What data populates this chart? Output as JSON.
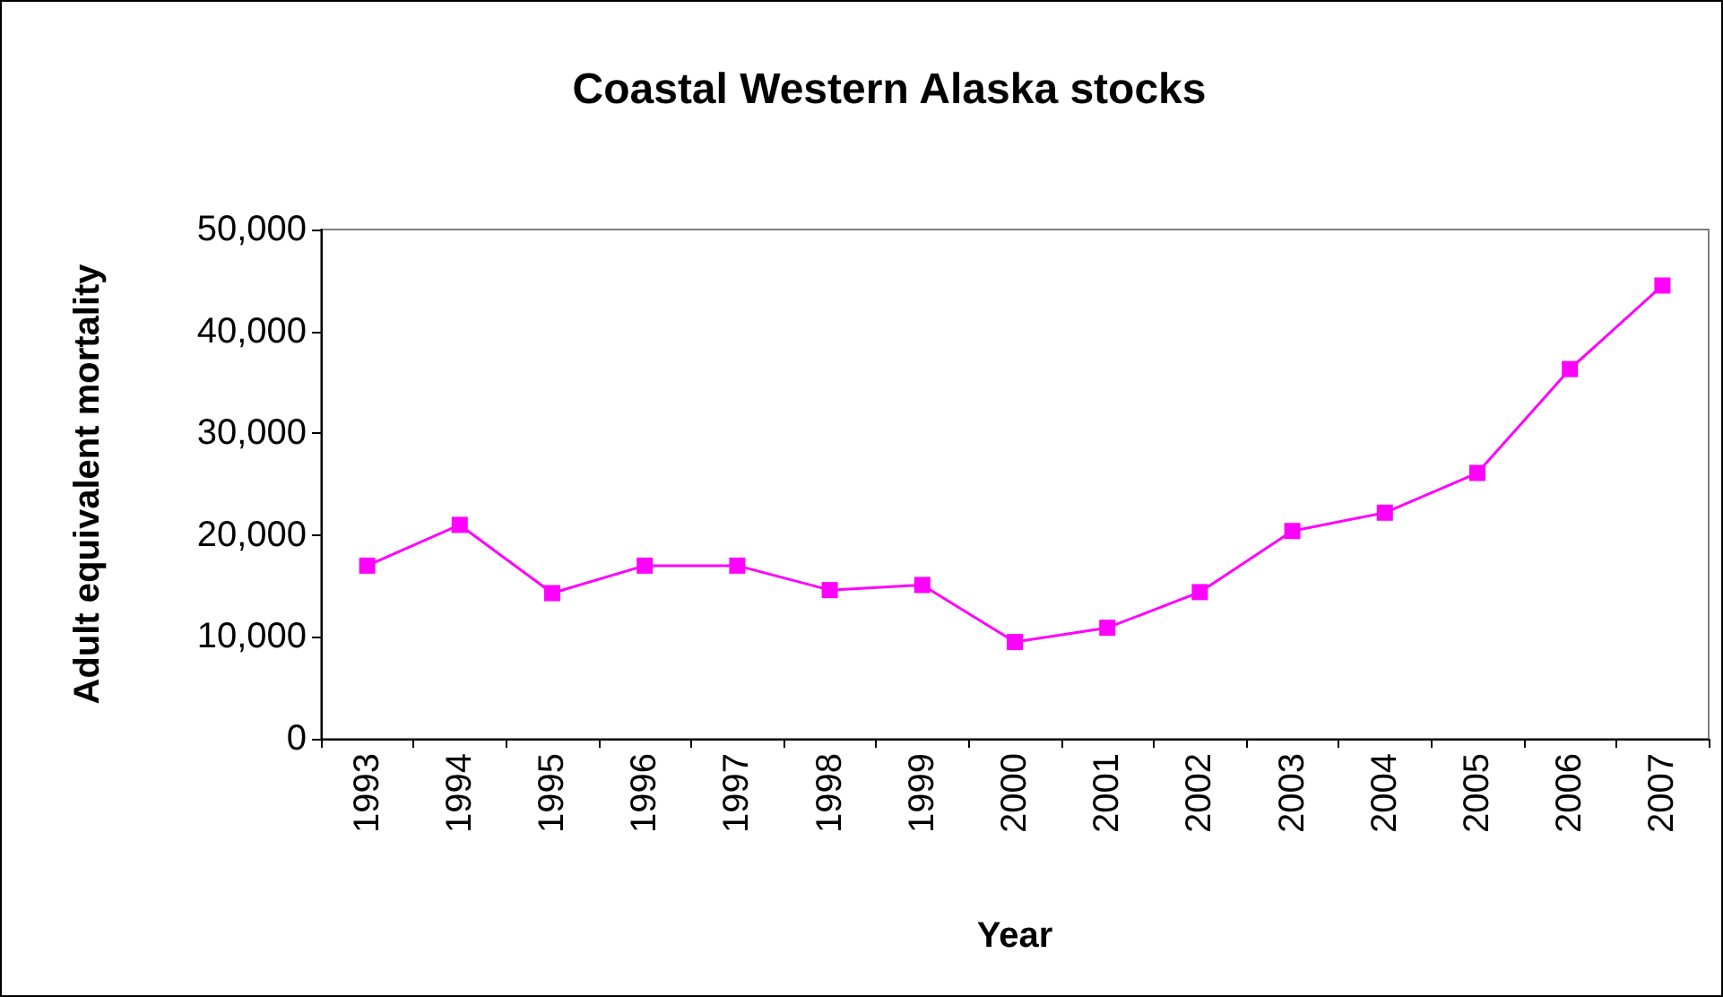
{
  "chart_data": {
    "type": "line",
    "title": "Coastal Western Alaska stocks",
    "xlabel": "Year",
    "ylabel": "Adult equivalent mortality",
    "categories": [
      "1993",
      "1994",
      "1995",
      "1996",
      "1997",
      "1998",
      "1999",
      "2000",
      "2001",
      "2002",
      "2003",
      "2004",
      "2005",
      "2006",
      "2007"
    ],
    "series": [
      {
        "color": "#ff00ff",
        "values": [
          17000,
          21000,
          14300,
          17000,
          17000,
          14600,
          15100,
          9500,
          10900,
          14400,
          20400,
          22200,
          26100,
          36300,
          44500
        ]
      }
    ],
    "ylim": [
      0,
      50000
    ],
    "yticks": [
      0,
      {
        "value": 10000,
        "label": "10,000"
      },
      {
        "value": 20000,
        "label": "20,000"
      },
      {
        "value": 30000,
        "label": "30,000"
      },
      {
        "value": 40000,
        "label": "40,000"
      },
      {
        "value": 50000,
        "label": "50,000"
      }
    ],
    "grid": false,
    "marker": "square",
    "line_style": "solid"
  }
}
